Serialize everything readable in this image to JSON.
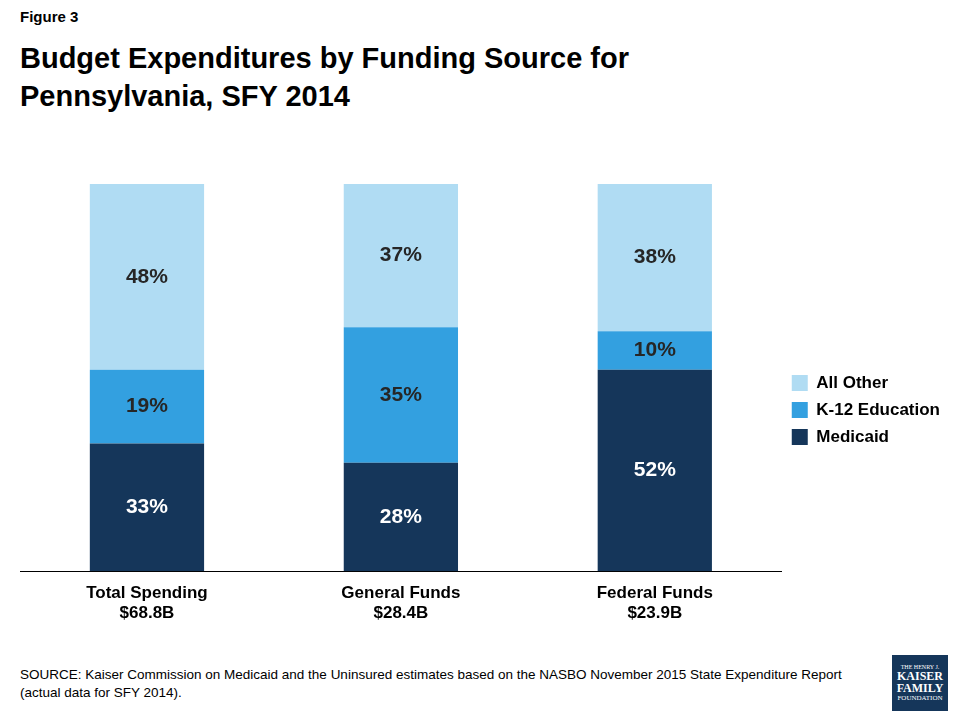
{
  "chart_data": {
    "type": "bar",
    "figure_label": "Figure 3",
    "title": "Budget Expenditures by Funding Source for Pennsylvania, SFY 2014",
    "categories": [
      [
        "Total Spending",
        "$68.8B"
      ],
      [
        "General Funds",
        "$28.4B"
      ],
      [
        "Federal Funds",
        "$23.9B"
      ]
    ],
    "series": [
      {
        "name": "Medicaid",
        "color": "#15365a",
        "values": [
          33,
          28,
          52
        ],
        "value_labels": [
          "33%",
          "28%",
          "52%"
        ]
      },
      {
        "name": "K-12 Education",
        "color": "#33a0e0",
        "values": [
          19,
          35,
          10
        ],
        "value_labels": [
          "19%",
          "35%",
          "10%"
        ]
      },
      {
        "name": "All Other",
        "color": "#b0dcf3",
        "values": [
          48,
          37,
          38
        ],
        "value_labels": [
          "48%",
          "37%",
          "38%"
        ]
      }
    ],
    "ylim": [
      0,
      100
    ],
    "stacked": true,
    "data_labels": true,
    "legend": "right",
    "grid": false,
    "tick_labels": "x",
    "source": "SOURCE: Kaiser Commission on Medicaid and the Uninsured estimates based on the NASBO November 2015 State Expenditure Report (actual data for SFY 2014).",
    "logo": [
      "THE HENRY J.",
      "KAISER",
      "FAMILY",
      "FOUNDATION"
    ]
  }
}
